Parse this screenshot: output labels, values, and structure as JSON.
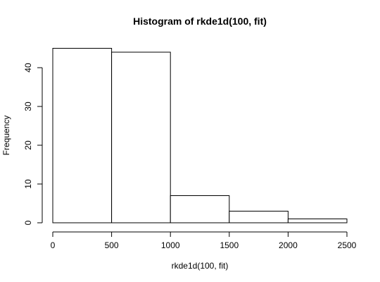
{
  "chart_data": {
    "type": "bar",
    "title": "Histogram of rkde1d(100, fit)",
    "xlabel": "rkde1d(100, fit)",
    "ylabel": "Frequency",
    "bins": [
      {
        "start": 0,
        "end": 500,
        "count": 45
      },
      {
        "start": 500,
        "end": 1000,
        "count": 44
      },
      {
        "start": 1000,
        "end": 1500,
        "count": 7
      },
      {
        "start": 1500,
        "end": 2000,
        "count": 3
      },
      {
        "start": 2000,
        "end": 2500,
        "count": 1
      }
    ],
    "xlim": [
      0,
      2500
    ],
    "ylim": [
      0,
      45
    ],
    "xticks": [
      0,
      500,
      1000,
      1500,
      2000,
      2500
    ],
    "yticks": [
      0,
      10,
      20,
      30,
      40
    ],
    "grid": false
  }
}
